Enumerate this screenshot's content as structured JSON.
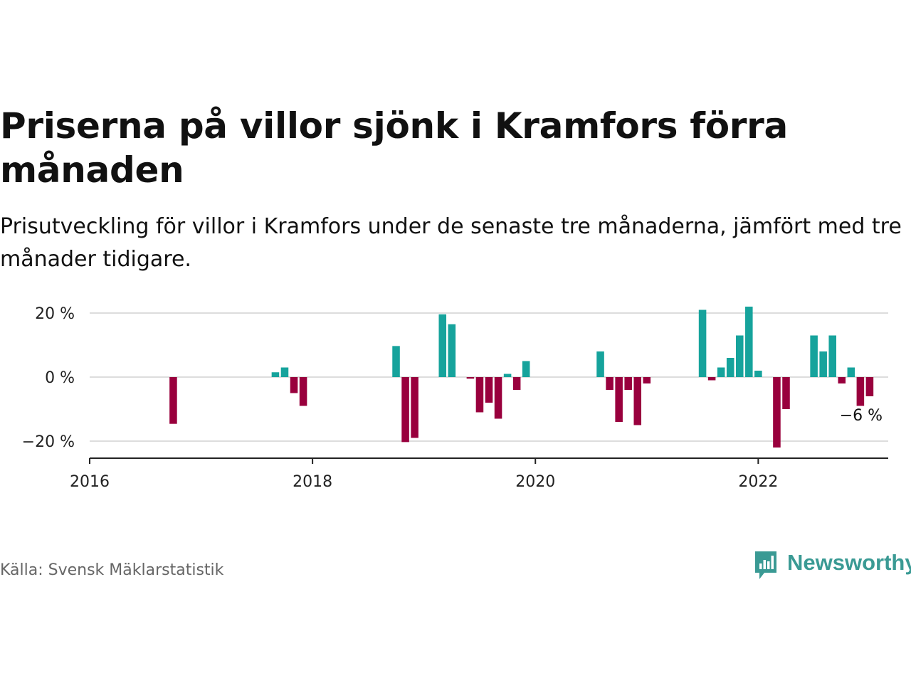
{
  "header": {
    "title": "Priserna på villor sjönk i Kramfors förra månaden",
    "subtitle": "Prisutveckling för villor i Kramfors under de senaste tre månaderna, jämfört med tre månader tidigare."
  },
  "footer": {
    "source": "Källa: Svensk Mäklarstatistik",
    "brand": "Newsworthy"
  },
  "colors": {
    "positive": "#16a39c",
    "negative": "#99003d",
    "grid": "#dddddd",
    "axis": "#222222",
    "brand": "#3a9a94"
  },
  "chart_data": {
    "type": "bar",
    "x_type": "date",
    "xlim": [
      "2016-01",
      "2023-03"
    ],
    "ylim": [
      -25,
      24
    ],
    "x_ticks": [
      {
        "x": "2016-01",
        "label": "2016"
      },
      {
        "x": "2018-01",
        "label": "2018"
      },
      {
        "x": "2020-01",
        "label": "2020"
      },
      {
        "x": "2022-01",
        "label": "2022"
      }
    ],
    "y_ticks": [
      {
        "value": 20,
        "label": "20 %"
      },
      {
        "value": 0,
        "label": "0 %"
      },
      {
        "value": -20,
        "label": "−20 %"
      }
    ],
    "grid": true,
    "annotation": {
      "x": "2022-12",
      "value": -6,
      "label": "−6 %"
    },
    "series": [
      {
        "points": [
          {
            "x": "2016-10",
            "value": -14.6
          },
          {
            "x": "2017-09",
            "value": 1.5
          },
          {
            "x": "2017-10",
            "value": 3.0
          },
          {
            "x": "2017-11",
            "value": -5.0
          },
          {
            "x": "2017-12",
            "value": -9.0
          },
          {
            "x": "2018-10",
            "value": 9.7
          },
          {
            "x": "2018-11",
            "value": -20.3
          },
          {
            "x": "2018-12",
            "value": -19.0
          },
          {
            "x": "2019-03",
            "value": 19.6
          },
          {
            "x": "2019-04",
            "value": 16.5
          },
          {
            "x": "2019-06",
            "value": -0.5
          },
          {
            "x": "2019-07",
            "value": -11.0
          },
          {
            "x": "2019-08",
            "value": -8.0
          },
          {
            "x": "2019-09",
            "value": -13.0
          },
          {
            "x": "2019-10",
            "value": 1.0
          },
          {
            "x": "2019-11",
            "value": -4.0
          },
          {
            "x": "2019-12",
            "value": 5.0
          },
          {
            "x": "2020-08",
            "value": 8.0
          },
          {
            "x": "2020-09",
            "value": -4.0
          },
          {
            "x": "2020-10",
            "value": -14.0
          },
          {
            "x": "2020-11",
            "value": -4.0
          },
          {
            "x": "2020-12",
            "value": -15.0
          },
          {
            "x": "2021-01",
            "value": -2.0
          },
          {
            "x": "2021-07",
            "value": 21.0
          },
          {
            "x": "2021-08",
            "value": -1.0
          },
          {
            "x": "2021-09",
            "value": 3.0
          },
          {
            "x": "2021-10",
            "value": 6.0
          },
          {
            "x": "2021-11",
            "value": 13.0
          },
          {
            "x": "2021-12",
            "value": 22.0
          },
          {
            "x": "2022-01",
            "value": 2.0
          },
          {
            "x": "2022-03",
            "value": -22.0
          },
          {
            "x": "2022-04",
            "value": -10.0
          },
          {
            "x": "2022-07",
            "value": 13.0
          },
          {
            "x": "2022-08",
            "value": 8.0
          },
          {
            "x": "2022-09",
            "value": 13.0
          },
          {
            "x": "2022-10",
            "value": -2.0
          },
          {
            "x": "2022-11",
            "value": 3.0
          },
          {
            "x": "2022-12",
            "value": -9.0
          },
          {
            "x": "2023-01",
            "value": -6.0
          }
        ]
      }
    ]
  }
}
